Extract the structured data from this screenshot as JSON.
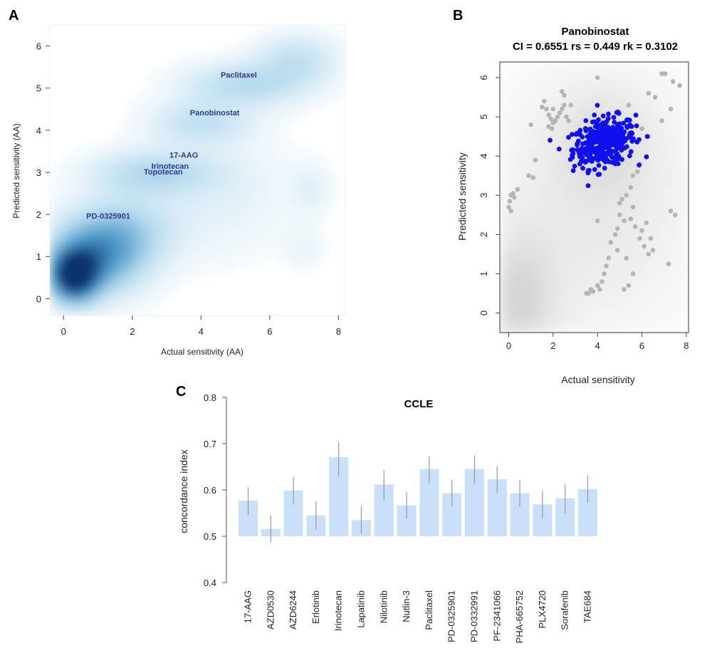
{
  "panels": {
    "a": {
      "letter": "A"
    },
    "b": {
      "letter": "B"
    },
    "c": {
      "letter": "C"
    }
  },
  "chart_data": [
    {
      "type": "heatmap",
      "panel": "A",
      "xlabel": "Actual sensitivity (AA)",
      "ylabel": "Predicted sensitivity (AA)",
      "xlim": [
        -0.4,
        8.2
      ],
      "ylim": [
        -0.4,
        6.5
      ],
      "xticks": [
        0,
        2,
        4,
        6,
        8
      ],
      "yticks": [
        0,
        1,
        2,
        3,
        4,
        5,
        6
      ],
      "colormap": [
        "#ffffff",
        "#b9dcef",
        "#4a97c8",
        "#08306b"
      ],
      "density_blobs": [
        {
          "x": 0.3,
          "y": 0.55,
          "sx": 0.45,
          "sy": 0.4,
          "w": 1.0
        },
        {
          "x": 0.9,
          "y": 1.0,
          "sx": 0.9,
          "sy": 0.6,
          "w": 0.55
        },
        {
          "x": 1.8,
          "y": 1.6,
          "sx": 1.0,
          "sy": 0.6,
          "w": 0.25
        },
        {
          "x": 2.6,
          "y": 3.0,
          "sx": 1.2,
          "sy": 0.35,
          "w": 0.25
        },
        {
          "x": 4.0,
          "y": 4.2,
          "sx": 1.0,
          "sy": 0.35,
          "w": 0.2
        },
        {
          "x": 5.3,
          "y": 5.1,
          "sx": 1.2,
          "sy": 0.35,
          "w": 0.25
        },
        {
          "x": 6.8,
          "y": 5.7,
          "sx": 0.8,
          "sy": 0.4,
          "w": 0.2
        },
        {
          "x": 4.5,
          "y": 2.5,
          "sx": 1.5,
          "sy": 1.0,
          "w": 0.08
        },
        {
          "x": 7.2,
          "y": 2.6,
          "sx": 0.4,
          "sy": 0.4,
          "w": 0.08
        },
        {
          "x": 7.0,
          "y": 1.2,
          "sx": 0.4,
          "sy": 0.3,
          "w": 0.06
        }
      ],
      "annotations": [
        {
          "text": "Paclitaxel",
          "x": 5.1,
          "y": 5.25
        },
        {
          "text": "Panobinostat",
          "x": 4.4,
          "y": 4.35
        },
        {
          "text": "17-AAG",
          "x": 3.5,
          "y": 3.35
        },
        {
          "text": "Irinotecan",
          "x": 3.1,
          "y": 3.08
        },
        {
          "text": "Topotecan",
          "x": 2.9,
          "y": 2.95
        },
        {
          "text": "PD-0325901",
          "x": 1.3,
          "y": 1.9
        }
      ]
    },
    {
      "type": "scatter",
      "panel": "B",
      "title": "Panobinostat",
      "subtitle": "CI = 0.6551 rs = 0.449 rk = 0.3102",
      "xlabel": "Actual sensitivity",
      "ylabel": "Predicted sensitivity",
      "xlim": [
        -0.4,
        8.1
      ],
      "ylim": [
        -0.5,
        6.4
      ],
      "xticks": [
        0,
        2,
        4,
        6,
        8
      ],
      "yticks": [
        0,
        1,
        2,
        3,
        4,
        5,
        6
      ],
      "background_density": [
        {
          "x": 0.4,
          "y": 0.3,
          "sx": 1.2,
          "sy": 1.2,
          "w": 0.28
        },
        {
          "x": 4.0,
          "y": 3.0,
          "sx": 3.2,
          "sy": 2.5,
          "w": 0.18
        },
        {
          "x": 4.3,
          "y": 4.4,
          "sx": 1.3,
          "sy": 0.8,
          "w": 0.15
        }
      ],
      "series": [
        {
          "name": "Panobinostat",
          "color": "#1010ee",
          "cluster": {
            "cx": 4.3,
            "cy": 4.35,
            "sx": 0.7,
            "sy": 0.3,
            "n": 380
          }
        },
        {
          "name": "other",
          "color": "#b5b5b5",
          "points": [
            [
              0.0,
              2.7
            ],
            [
              0.05,
              2.85
            ],
            [
              0.1,
              3.0
            ],
            [
              0.2,
              3.05
            ],
            [
              0.25,
              2.95
            ],
            [
              0.4,
              3.15
            ],
            [
              0.1,
              2.6
            ],
            [
              0.9,
              3.5
            ],
            [
              1.1,
              3.45
            ],
            [
              1.2,
              3.9
            ],
            [
              1.0,
              4.8
            ],
            [
              1.5,
              5.25
            ],
            [
              1.6,
              5.4
            ],
            [
              1.7,
              5.2
            ],
            [
              1.8,
              5.05
            ],
            [
              1.9,
              4.95
            ],
            [
              2.0,
              4.85
            ],
            [
              1.95,
              4.7
            ],
            [
              2.1,
              4.9
            ],
            [
              2.2,
              5.0
            ],
            [
              2.3,
              5.1
            ],
            [
              2.4,
              5.2
            ],
            [
              2.5,
              5.3
            ],
            [
              2.6,
              5.0
            ],
            [
              2.7,
              4.9
            ],
            [
              2.5,
              5.55
            ],
            [
              2.4,
              5.65
            ],
            [
              2.8,
              5.3
            ],
            [
              2.0,
              5.2
            ],
            [
              1.8,
              4.75
            ],
            [
              4.0,
              6.0
            ],
            [
              5.4,
              5.3
            ],
            [
              6.3,
              5.6
            ],
            [
              6.6,
              5.5
            ],
            [
              6.9,
              6.1
            ],
            [
              7.05,
              6.1
            ],
            [
              7.4,
              5.9
            ],
            [
              7.7,
              5.8
            ],
            [
              7.3,
              5.2
            ],
            [
              6.9,
              4.9
            ],
            [
              6.3,
              4.5
            ],
            [
              6.0,
              4.7
            ],
            [
              5.9,
              3.8
            ],
            [
              5.8,
              3.6
            ],
            [
              5.6,
              3.5
            ],
            [
              5.5,
              3.2
            ],
            [
              5.3,
              3.0
            ],
            [
              5.1,
              2.9
            ],
            [
              5.0,
              2.5
            ],
            [
              5.2,
              2.35
            ],
            [
              4.9,
              2.15
            ],
            [
              4.8,
              2.0
            ],
            [
              4.6,
              1.8
            ],
            [
              4.9,
              1.6
            ],
            [
              5.3,
              1.4
            ],
            [
              5.6,
              1.0
            ],
            [
              5.4,
              0.7
            ],
            [
              5.2,
              0.6
            ],
            [
              5.9,
              1.9
            ],
            [
              6.1,
              1.7
            ],
            [
              6.3,
              1.5
            ],
            [
              6.5,
              1.6
            ],
            [
              6.4,
              1.9
            ],
            [
              6.0,
              2.1
            ],
            [
              6.2,
              2.3
            ],
            [
              5.7,
              2.2
            ],
            [
              5.5,
              2.4
            ],
            [
              4.5,
              1.4
            ],
            [
              4.3,
              1.0
            ],
            [
              4.0,
              0.7
            ],
            [
              3.8,
              0.55
            ],
            [
              4.2,
              0.8
            ],
            [
              4.1,
              0.6
            ],
            [
              3.6,
              0.5
            ],
            [
              3.5,
              0.5
            ],
            [
              3.7,
              0.6
            ],
            [
              4.4,
              1.2
            ],
            [
              7.3,
              2.6
            ],
            [
              7.5,
              2.5
            ],
            [
              7.2,
              1.25
            ],
            [
              4.0,
              2.35
            ],
            [
              5.0,
              2.8
            ],
            [
              5.6,
              2.7
            ]
          ]
        }
      ]
    },
    {
      "type": "bar",
      "panel": "C",
      "title": "CCLE",
      "ylabel": "concordance index",
      "ylim": [
        0.4,
        0.8
      ],
      "yticks": [
        0.4,
        0.5,
        0.6,
        0.7,
        0.8
      ],
      "baseline": 0.5,
      "bar_color": "#c9dffa",
      "categories": [
        "17-AAG",
        "AZD0530",
        "AZD6244",
        "Erlotinib",
        "Irinotecan",
        "Lapatinib",
        "Nilotinib",
        "Nutlin-3",
        "Paclitaxel",
        "PD-0325901",
        "PD-0332991",
        "PF-2341066",
        "PHA-665752",
        "PLX4720",
        "Sorafenib",
        "TAE684"
      ],
      "values": [
        0.577,
        0.516,
        0.599,
        0.545,
        0.671,
        0.535,
        0.612,
        0.567,
        0.645,
        0.593,
        0.645,
        0.623,
        0.593,
        0.569,
        0.582,
        0.602
      ],
      "error_low": [
        0.546,
        0.487,
        0.568,
        0.515,
        0.63,
        0.505,
        0.577,
        0.538,
        0.614,
        0.565,
        0.614,
        0.594,
        0.564,
        0.539,
        0.55,
        0.572
      ],
      "error_high": [
        0.606,
        0.545,
        0.628,
        0.576,
        0.703,
        0.565,
        0.643,
        0.595,
        0.672,
        0.622,
        0.675,
        0.651,
        0.622,
        0.598,
        0.612,
        0.631
      ]
    }
  ]
}
